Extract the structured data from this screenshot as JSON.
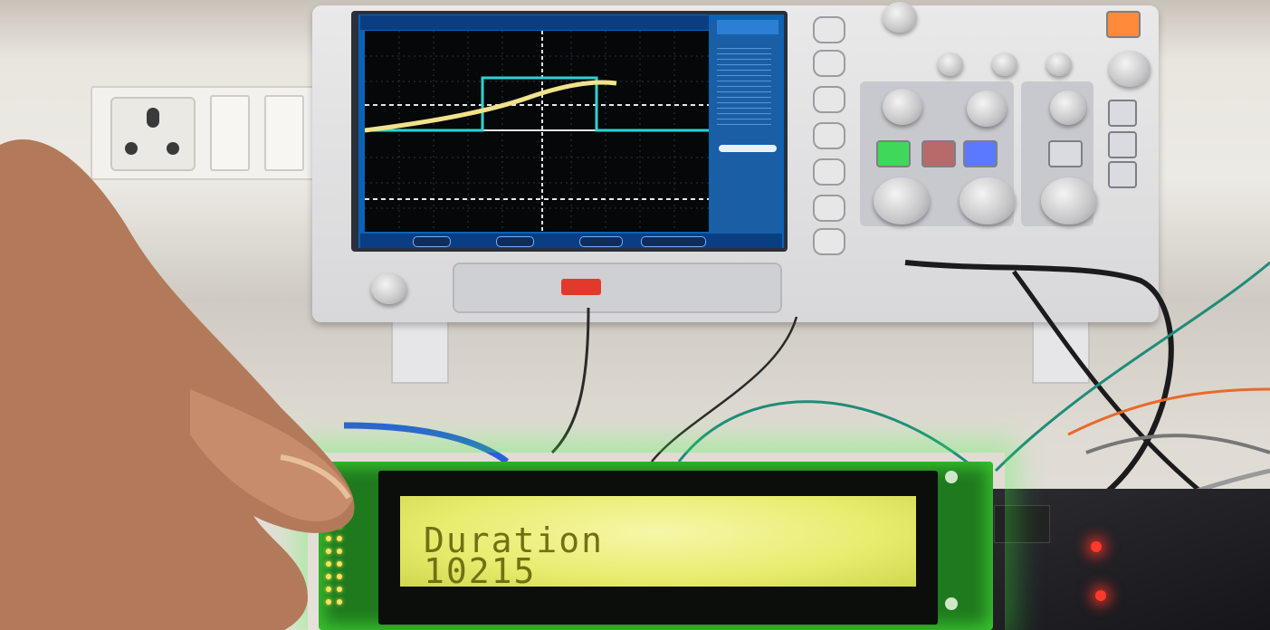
{
  "scene": {
    "description_kind": "photo",
    "lcd": {
      "line1": "Duration",
      "line2": "10215"
    },
    "colors": {
      "lcd_backlight": "#eef07a",
      "lcd_text": "#717013",
      "pcb": "#1f7a1e",
      "scope_screen": "#0b63b5",
      "trace_yellow": "#f2e28a",
      "trace_cyan": "#2ad4d4"
    }
  }
}
